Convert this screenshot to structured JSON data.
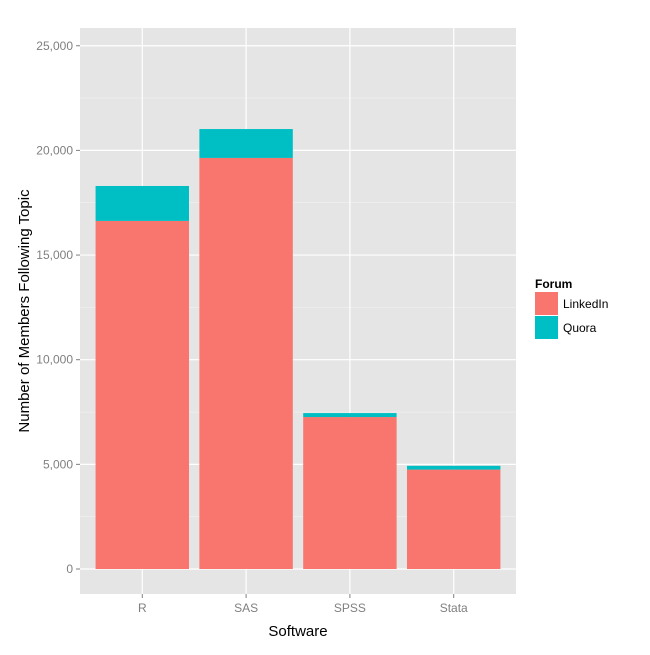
{
  "chart_data": {
    "type": "bar",
    "stacked": true,
    "title": "",
    "xlabel": "Software",
    "ylabel": "Number of Members Following Topic",
    "categories": [
      "R",
      "SAS",
      "SPSS",
      "Stata"
    ],
    "series": [
      {
        "name": "LinkedIn",
        "color": "#F8766D",
        "values": [
          16630,
          19640,
          7260,
          4750
        ]
      },
      {
        "name": "Quora",
        "color": "#00BFC4",
        "values": [
          1670,
          1380,
          190,
          180
        ]
      }
    ],
    "ylim": [
      0,
      25000
    ],
    "yticks": [
      0,
      5000,
      10000,
      15000,
      20000,
      25000
    ],
    "ytick_labels": [
      "0",
      "5,000",
      "10,000",
      "15,000",
      "20,000",
      "25,000"
    ],
    "grid": true,
    "legend": {
      "title": "Forum",
      "position": "right"
    }
  }
}
